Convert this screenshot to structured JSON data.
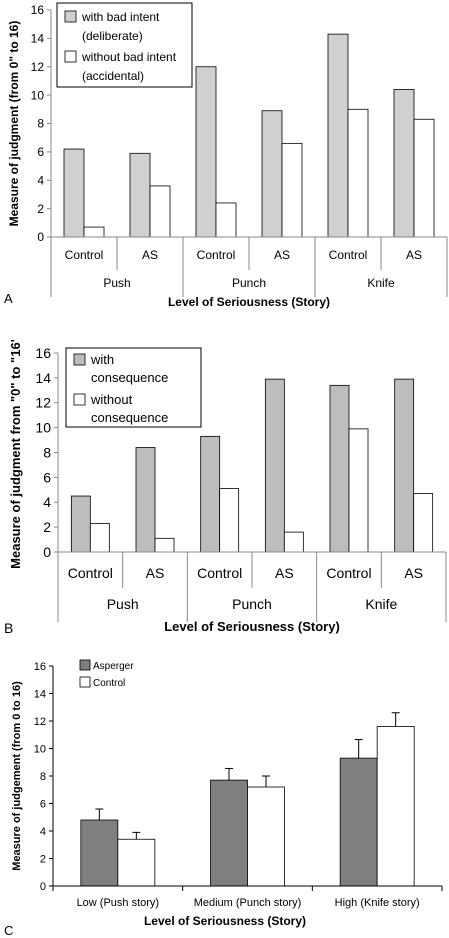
{
  "chart_data": [
    {
      "type": "bar",
      "panel_label": "A",
      "ylabel": "Measure of judgment (from 0\" to 16)",
      "xlabel": "Level of Seriousness (Story)",
      "ylim": [
        0,
        16
      ],
      "yticks": [
        0,
        2,
        4,
        6,
        8,
        10,
        12,
        14,
        16
      ],
      "groups": [
        "Push",
        "Punch",
        "Knife"
      ],
      "categories": [
        "Control",
        "AS",
        "Control",
        "AS",
        "Control",
        "AS"
      ],
      "series": [
        {
          "name": "with bad intent (deliberate)",
          "name_lines": [
            "with bad intent",
            "(deliberate)"
          ],
          "color": "#d0d0d0",
          "values": [
            6.2,
            5.9,
            12.0,
            8.9,
            14.3,
            10.4
          ]
        },
        {
          "name": "without bad intent (accidental)",
          "name_lines": [
            "without bad intent",
            "(accidental)"
          ],
          "color": "#ffffff",
          "values": [
            0.7,
            3.6,
            2.4,
            6.6,
            9.0,
            8.3
          ]
        }
      ],
      "grid": false,
      "legend": "top-left"
    },
    {
      "type": "bar",
      "panel_label": "B",
      "ylabel": "Measure of judgment from \"0\" to \"16\"",
      "xlabel": "Level of Seriousness (Story)",
      "ylim": [
        0,
        16
      ],
      "yticks": [
        0,
        2,
        4,
        6,
        8,
        10,
        12,
        14,
        16
      ],
      "groups": [
        "Push",
        "Punch",
        "Knife"
      ],
      "categories": [
        "Control",
        "AS",
        "Control",
        "AS",
        "Control",
        "AS"
      ],
      "series": [
        {
          "name": "with consequence",
          "name_lines": [
            "with",
            "consequence"
          ],
          "color": "#bdbdbd",
          "values": [
            4.5,
            8.4,
            9.3,
            13.9,
            13.4,
            13.9
          ]
        },
        {
          "name": "without consequence",
          "name_lines": [
            "without",
            "consequence"
          ],
          "color": "#ffffff",
          "values": [
            2.3,
            1.1,
            5.1,
            1.6,
            9.9,
            4.7
          ]
        }
      ],
      "grid": false,
      "legend": "top-left"
    },
    {
      "type": "bar",
      "panel_label": "C",
      "ylabel": "Measure of judgement (from 0 to 16)",
      "xlabel": "Level of Seriousness (Story)",
      "ylim": [
        0,
        16
      ],
      "yticks": [
        0,
        2,
        4,
        6,
        8,
        10,
        12,
        14,
        16
      ],
      "categories": [
        "Low (Push story)",
        "Medium (Punch story)",
        "High (Knife story)"
      ],
      "series": [
        {
          "name": "Asperger",
          "color": "#7f7f7f",
          "values": [
            4.8,
            7.7,
            9.3
          ],
          "errors": [
            0.8,
            0.85,
            1.35
          ]
        },
        {
          "name": "Control",
          "color": "#ffffff",
          "values": [
            3.4,
            7.2,
            11.6
          ],
          "errors": [
            0.5,
            0.8,
            1.0
          ]
        }
      ],
      "grid": false,
      "legend": "top-left"
    }
  ]
}
